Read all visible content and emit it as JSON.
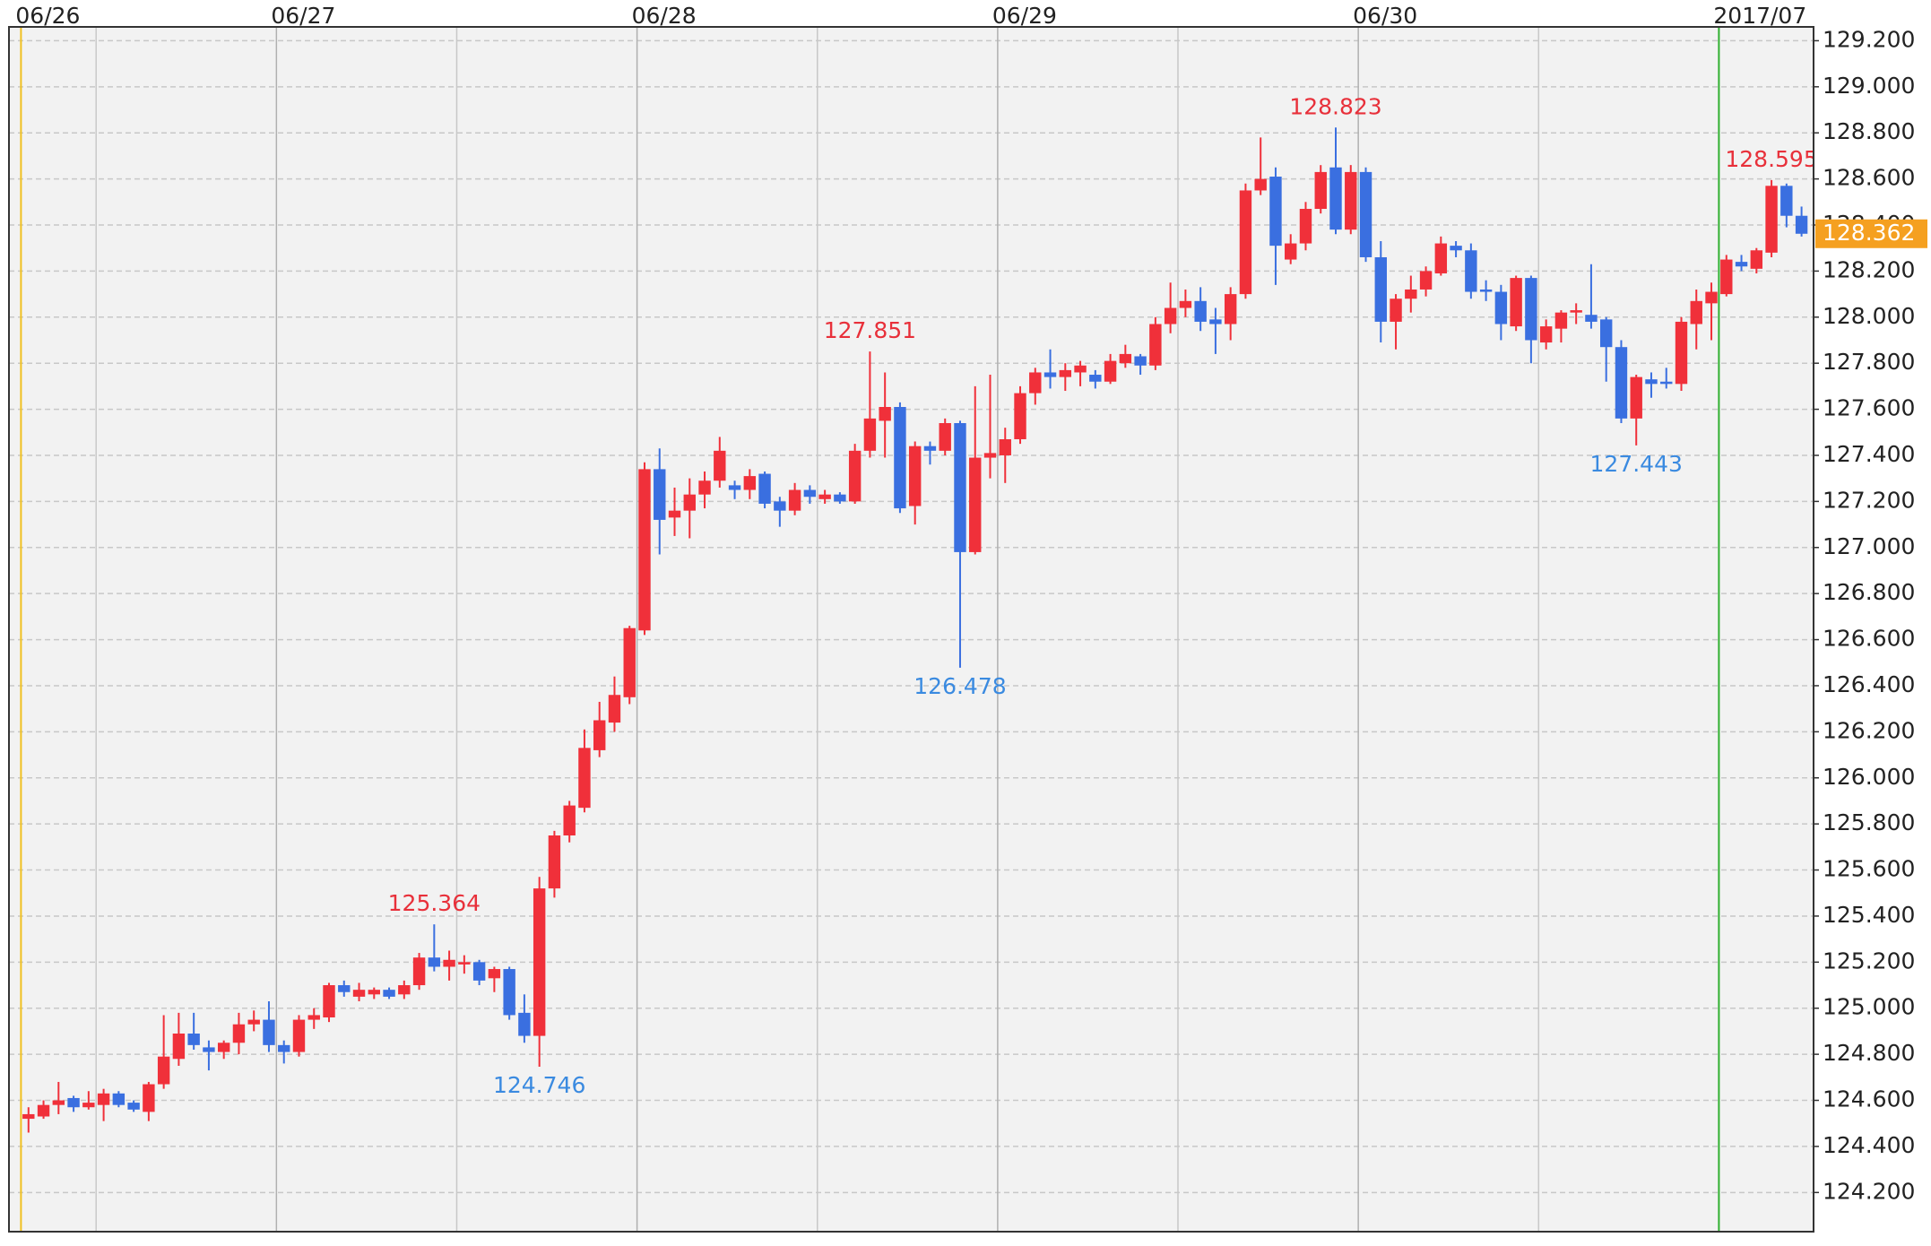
{
  "chart_data": {
    "type": "candlestick",
    "up_color": "#f0303a",
    "down_color": "#3a6fe0",
    "open": [
      124.52,
      124.53,
      124.58,
      124.61,
      124.57,
      124.58,
      124.63,
      124.59,
      124.55,
      124.67,
      124.78,
      124.89,
      124.83,
      124.81,
      124.85,
      124.93,
      124.95,
      124.84,
      124.81,
      124.95,
      124.96,
      125.1,
      125.05,
      125.06,
      125.08,
      125.06,
      125.1,
      125.22,
      125.18,
      125.19,
      125.2,
      125.13,
      125.17,
      124.98,
      124.88,
      125.52,
      125.75,
      125.87,
      126.12,
      126.24,
      126.35,
      126.64,
      127.34,
      127.13,
      127.16,
      127.23,
      127.29,
      127.27,
      127.25,
      127.32,
      127.2,
      127.16,
      127.25,
      127.21,
      127.23,
      127.2,
      127.42,
      127.55,
      127.61,
      127.18,
      127.44,
      127.42,
      127.54,
      126.98,
      127.39,
      127.4,
      127.47,
      127.67,
      127.76,
      127.74,
      127.76,
      127.75,
      127.72,
      127.8,
      127.83,
      127.79,
      127.97,
      128.04,
      128.07,
      127.99,
      127.97,
      128.1,
      128.55,
      128.61,
      128.25,
      128.32,
      128.47,
      128.65,
      128.38,
      128.63,
      128.26,
      127.98,
      128.08,
      128.12,
      128.19,
      128.31,
      128.29,
      128.12,
      128.11,
      127.96,
      128.17,
      127.89,
      127.95,
      128.02,
      128.01,
      127.99,
      127.87,
      127.56,
      127.73,
      127.72,
      127.71,
      127.97,
      128.06,
      128.1,
      128.24,
      128.21,
      128.28,
      128.57,
      128.44
    ],
    "high": [
      124.57,
      124.6,
      124.68,
      124.62,
      124.64,
      124.65,
      124.64,
      124.6,
      124.68,
      124.97,
      124.98,
      124.98,
      124.86,
      124.86,
      124.98,
      124.99,
      125.03,
      124.86,
      124.97,
      125.0,
      125.11,
      125.12,
      125.11,
      125.09,
      125.09,
      125.12,
      125.24,
      125.364,
      125.25,
      125.23,
      125.21,
      125.18,
      125.18,
      125.06,
      125.57,
      125.77,
      125.9,
      126.21,
      126.33,
      126.44,
      126.66,
      127.37,
      127.43,
      127.26,
      127.3,
      127.33,
      127.48,
      127.29,
      127.34,
      127.33,
      127.22,
      127.28,
      127.27,
      127.25,
      127.24,
      127.45,
      127.851,
      127.76,
      127.63,
      127.46,
      127.46,
      127.56,
      127.55,
      127.7,
      127.75,
      127.52,
      127.7,
      127.78,
      127.86,
      127.8,
      127.81,
      127.77,
      127.84,
      127.88,
      127.84,
      128.0,
      128.15,
      128.12,
      128.13,
      128.04,
      128.13,
      128.58,
      128.78,
      128.65,
      128.36,
      128.5,
      128.66,
      128.823,
      128.66,
      128.65,
      128.33,
      128.1,
      128.18,
      128.22,
      128.35,
      128.33,
      128.32,
      128.16,
      128.14,
      128.18,
      128.18,
      127.99,
      128.03,
      128.06,
      128.23,
      128.0,
      127.9,
      127.75,
      127.76,
      127.78,
      128.0,
      128.12,
      128.15,
      128.27,
      128.27,
      128.3,
      128.595,
      128.58,
      128.48
    ],
    "low": [
      124.46,
      124.52,
      124.54,
      124.55,
      124.56,
      124.51,
      124.57,
      124.55,
      124.51,
      124.65,
      124.75,
      124.82,
      124.73,
      124.78,
      124.8,
      124.9,
      124.81,
      124.76,
      124.79,
      124.91,
      124.94,
      125.05,
      125.03,
      125.04,
      125.04,
      125.04,
      125.08,
      125.16,
      125.12,
      125.15,
      125.1,
      125.07,
      124.95,
      124.85,
      124.746,
      125.48,
      125.72,
      125.85,
      126.09,
      126.2,
      126.32,
      126.62,
      126.97,
      127.05,
      127.04,
      127.17,
      127.26,
      127.21,
      127.21,
      127.17,
      127.09,
      127.14,
      127.19,
      127.19,
      127.19,
      127.19,
      127.39,
      127.39,
      127.15,
      127.1,
      127.36,
      127.4,
      126.478,
      126.97,
      127.3,
      127.28,
      127.45,
      127.62,
      127.69,
      127.68,
      127.7,
      127.69,
      127.71,
      127.78,
      127.75,
      127.77,
      127.93,
      128.0,
      127.94,
      127.84,
      127.9,
      128.08,
      128.53,
      128.14,
      128.23,
      128.29,
      128.45,
      128.36,
      128.36,
      128.24,
      127.89,
      127.86,
      128.02,
      128.09,
      128.18,
      128.26,
      128.08,
      128.07,
      127.9,
      127.94,
      127.8,
      127.86,
      127.89,
      127.97,
      127.95,
      127.72,
      127.54,
      127.443,
      127.65,
      127.69,
      127.68,
      127.86,
      127.9,
      128.09,
      128.2,
      128.19,
      128.26,
      128.39,
      128.35
    ],
    "close": [
      124.54,
      124.58,
      124.6,
      124.57,
      124.59,
      124.63,
      124.58,
      124.56,
      124.67,
      124.79,
      124.89,
      124.84,
      124.81,
      124.85,
      124.93,
      124.95,
      124.84,
      124.81,
      124.95,
      124.97,
      125.1,
      125.07,
      125.08,
      125.08,
      125.05,
      125.1,
      125.22,
      125.18,
      125.21,
      125.2,
      125.12,
      125.17,
      124.97,
      124.88,
      125.52,
      125.75,
      125.88,
      126.13,
      126.25,
      126.36,
      126.65,
      127.34,
      127.12,
      127.16,
      127.23,
      127.29,
      127.42,
      127.25,
      127.31,
      127.19,
      127.16,
      127.25,
      127.22,
      127.23,
      127.2,
      127.42,
      127.56,
      127.61,
      127.17,
      127.44,
      127.42,
      127.54,
      126.98,
      127.39,
      127.41,
      127.47,
      127.67,
      127.76,
      127.74,
      127.77,
      127.79,
      127.72,
      127.81,
      127.84,
      127.79,
      127.97,
      128.04,
      128.07,
      127.98,
      127.97,
      128.1,
      128.55,
      128.6,
      128.31,
      128.32,
      128.47,
      128.63,
      128.38,
      128.63,
      128.26,
      127.98,
      128.08,
      128.12,
      128.2,
      128.32,
      128.29,
      128.11,
      128.11,
      127.97,
      128.17,
      127.9,
      127.96,
      128.02,
      128.03,
      127.98,
      127.87,
      127.56,
      127.74,
      127.71,
      127.71,
      127.98,
      128.07,
      128.11,
      128.25,
      128.22,
      128.29,
      128.57,
      128.44,
      128.362
    ],
    "xlim": [
      -0.8,
      119.3
    ],
    "xticks": [
      {
        "value": 0,
        "label": "06/26",
        "color": "#f0c020"
      },
      {
        "value": 17,
        "label": "06/27"
      },
      {
        "value": 41,
        "label": "06/28"
      },
      {
        "value": 65,
        "label": "06/29"
      },
      {
        "value": 89,
        "label": "06/30"
      },
      {
        "value": 113,
        "label": "2017/07",
        "color": "#30b030"
      }
    ],
    "x_minor_ticks": [
      5,
      29,
      53,
      77,
      101
    ],
    "ylim": [
      124.03,
      129.26
    ],
    "yticks": [
      {
        "value": 124.2,
        "label": "124.200"
      },
      {
        "value": 124.4,
        "label": "124.400"
      },
      {
        "value": 124.6,
        "label": "124.600"
      },
      {
        "value": 124.8,
        "label": "124.800"
      },
      {
        "value": 125.0,
        "label": "125.000"
      },
      {
        "value": 125.2,
        "label": "125.200"
      },
      {
        "value": 125.4,
        "label": "125.400"
      },
      {
        "value": 125.6,
        "label": "125.600"
      },
      {
        "value": 125.8,
        "label": "125.800"
      },
      {
        "value": 126.0,
        "label": "126.000"
      },
      {
        "value": 126.2,
        "label": "126.200"
      },
      {
        "value": 126.4,
        "label": "126.400"
      },
      {
        "value": 126.6,
        "label": "126.600"
      },
      {
        "value": 126.8,
        "label": "126.800"
      },
      {
        "value": 127.0,
        "label": "127.000"
      },
      {
        "value": 127.2,
        "label": "127.200"
      },
      {
        "value": 127.4,
        "label": "127.400"
      },
      {
        "value": 127.6,
        "label": "127.600"
      },
      {
        "value": 127.8,
        "label": "127.800"
      },
      {
        "value": 128.0,
        "label": "128.000"
      },
      {
        "value": 128.2,
        "label": "128.200"
      },
      {
        "value": 128.4,
        "label": "128.400"
      },
      {
        "value": 128.6,
        "label": "128.600"
      },
      {
        "value": 128.8,
        "label": "128.800"
      },
      {
        "value": 129.0,
        "label": "129.000"
      },
      {
        "value": 129.2,
        "label": "129.200"
      }
    ],
    "grid": true,
    "annotations": [
      {
        "x": 27,
        "value": 125.364,
        "color": "#e8303a"
      },
      {
        "x": 34,
        "value": 124.746,
        "color": "#3a8ae0"
      },
      {
        "x": 56,
        "value": 127.851,
        "color": "#e8303a"
      },
      {
        "x": 62,
        "value": 126.478,
        "color": "#3a8ae0"
      },
      {
        "x": 87,
        "value": 128.823,
        "color": "#e8303a"
      },
      {
        "x": 107,
        "value": 127.443,
        "color": "#3a8ae0"
      },
      {
        "x": 116,
        "value": 128.595,
        "color": "#e8303a"
      }
    ],
    "last_price": 128.362,
    "last_price_color": "#f5a020"
  }
}
